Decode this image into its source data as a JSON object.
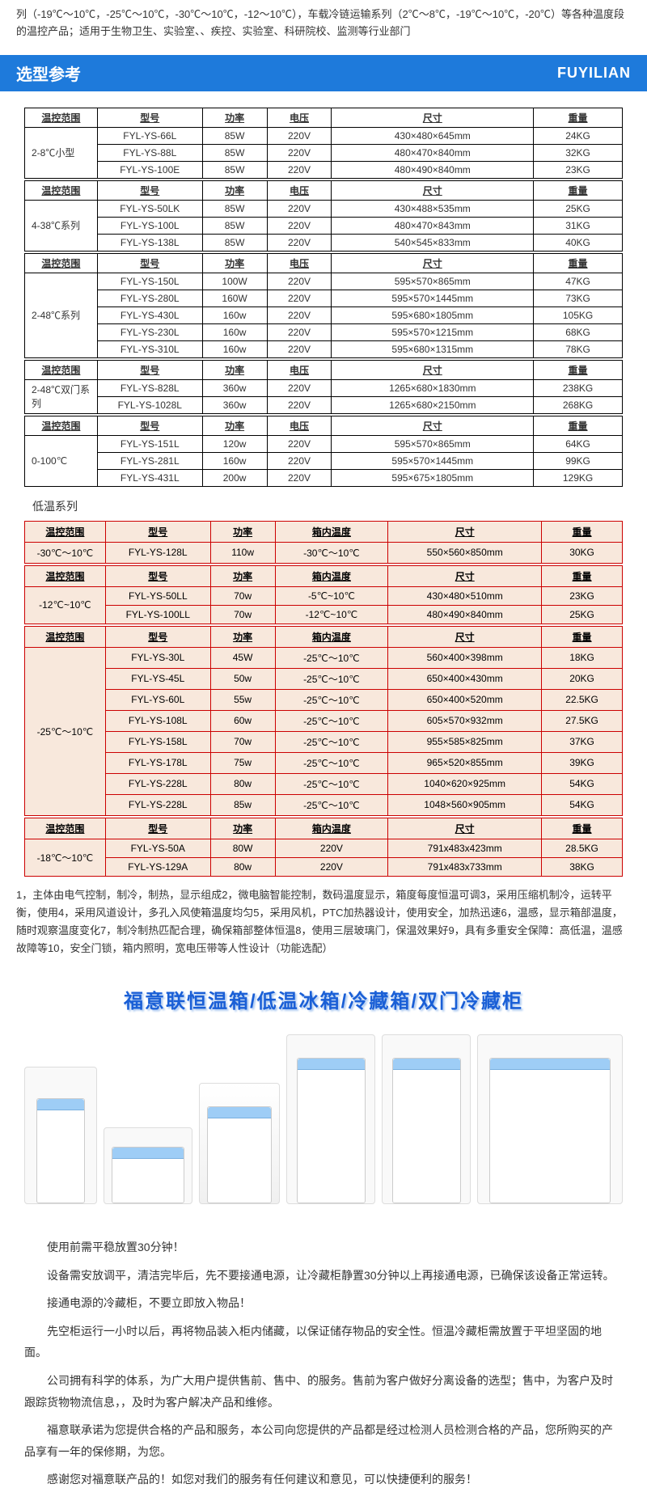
{
  "intro": "列（-19℃～10℃，-25℃～10℃，-30℃～10℃，-12～10℃），车载冷链运输系列（2℃～8℃，-19℃～10℃，-20℃）等各种温度段的温控产品；适用于生物卫生、实验室、、疾控、实验室、科研院校、监测等行业部门",
  "banner": {
    "title": "选型参考",
    "brand": "FUYILIAN"
  },
  "headers1": [
    "温控范围",
    "型号",
    "功率",
    "电压",
    "尺寸",
    "重量"
  ],
  "groups": [
    {
      "range": "2-8℃小型",
      "rows": [
        [
          "FYL-YS-66L",
          "85W",
          "220V",
          "430×480×645mm",
          "24KG"
        ],
        [
          "FYL-YS-88L",
          "85W",
          "220V",
          "480×470×840mm",
          "32KG"
        ],
        [
          "FYL-YS-100E",
          "85W",
          "220V",
          "480×490×840mm",
          "23KG"
        ]
      ]
    },
    {
      "range": "4-38℃系列",
      "rows": [
        [
          "FYL-YS-50LK",
          "85W",
          "220V",
          "430×488×535mm",
          "25KG"
        ],
        [
          "FYL-YS-100L",
          "85W",
          "220V",
          "480×470×843mm",
          "31KG"
        ],
        [
          "FYL-YS-138L",
          "85W",
          "220V",
          "540×545×833mm",
          "40KG"
        ]
      ]
    },
    {
      "range": "2-48℃系列",
      "rows": [
        [
          "FYL-YS-150L",
          "100W",
          "220V",
          "595×570×865mm",
          "47KG"
        ],
        [
          "FYL-YS-280L",
          "160W",
          "220V",
          "595×570×1445mm",
          "73KG"
        ],
        [
          "FYL-YS-430L",
          "160w",
          "220V",
          "595×680×1805mm",
          "105KG"
        ],
        [
          "FYL-YS-230L",
          "160w",
          "220V",
          "595×570×1215mm",
          "68KG"
        ],
        [
          "FYL-YS-310L",
          "160w",
          "220V",
          "595×680×1315mm",
          "78KG"
        ]
      ]
    },
    {
      "range": "2-48℃双门系列",
      "rows": [
        [
          "FYL-YS-828L",
          "360w",
          "220V",
          "1265×680×1830mm",
          "238KG"
        ],
        [
          "FYL-YS-1028L",
          "360w",
          "220V",
          "1265×680×2150mm",
          "268KG"
        ]
      ]
    },
    {
      "range": "0-100℃",
      "rows": [
        [
          "FYL-YS-151L",
          "120w",
          "220V",
          "595×570×865mm",
          "64KG"
        ],
        [
          "FYL-YS-281L",
          "160w",
          "220V",
          "595×570×1445mm",
          "99KG"
        ],
        [
          "FYL-YS-431L",
          "200w",
          "220V",
          "595×675×1805mm",
          "129KG"
        ]
      ]
    }
  ],
  "subhead": "低温系列",
  "headers2": [
    "温控范围",
    "型号",
    "功率",
    "箱内温度",
    "尺寸",
    "重量"
  ],
  "lowgroups": [
    {
      "range": "-30℃～10℃",
      "rows": [
        [
          "FYL-YS-128L",
          "110w",
          "-30℃～10℃",
          "550×560×850mm",
          "30KG"
        ]
      ]
    },
    {
      "range": "-12℃~10℃",
      "rows": [
        [
          "FYL-YS-50LL",
          "70w",
          "-5℃~10℃",
          "430×480×510mm",
          "23KG"
        ],
        [
          "FYL-YS-100LL",
          "70w",
          "-12℃~10℃",
          "480×490×840mm",
          "25KG"
        ]
      ]
    },
    {
      "range": "-25℃～10℃",
      "rows": [
        [
          "FYL-YS-30L",
          "45W",
          "-25℃～10℃",
          "560×400×398mm",
          "18KG"
        ],
        [
          "FYL-YS-45L",
          "50w",
          "-25℃～10℃",
          "650×400×430mm",
          "20KG"
        ],
        [
          "FYL-YS-60L",
          "55w",
          "-25℃～10℃",
          "650×400×520mm",
          "22.5KG"
        ],
        [
          "FYL-YS-108L",
          "60w",
          "-25℃～10℃",
          "605×570×932mm",
          "27.5KG"
        ],
        [
          "FYL-YS-158L",
          "70w",
          "-25℃～10℃",
          "955×585×825mm",
          "37KG"
        ],
        [
          "FYL-YS-178L",
          "75w",
          "-25℃～10℃",
          "965×520×855mm",
          "39KG"
        ],
        [
          "FYL-YS-228L",
          "80w",
          "-25℃～10℃",
          "1040×620×925mm",
          "54KG"
        ],
        [
          "FYL-YS-228L",
          "85w",
          "-25℃～10℃",
          "1048×560×905mm",
          "54KG"
        ]
      ]
    },
    {
      "range": "-18℃～10℃",
      "rows": [
        [
          "FYL-YS-50A",
          "80W",
          "220V",
          "791x483x423mm",
          "28.5KG"
        ],
        [
          "FYL-YS-129A",
          "80w",
          "220V",
          "791x483x733mm",
          "38KG"
        ]
      ]
    }
  ],
  "desc": "1，主体由电气控制，制冷，制热，显示组成2，微电脑智能控制，数码温度显示，箱度每度恒温可调3，采用压缩机制冷，运转平衡，使用4，采用风道设计，多孔入风使箱温度均匀5，采用风机，PTC加热器设计，使用安全，加热迅速6，温感，显示箱部温度，随时观察温度变化7，制冷制热匹配合理，确保箱部整体恒温8，使用三层玻璃门，保温效果好9，具有多重安全保障：高低温，温感故障等10，安全门锁，箱内照明，宽电压带等人性设计（功能选配）",
  "heading_blue": "福意联恒温箱/低温冰箱/冷藏箱/双门冷藏柜",
  "usage": [
    "使用前需平稳放置30分钟！",
    "设备需安放调平，清洁完毕后，先不要接通电源，让冷藏柜静置30分钟以上再接通电源，已确保该设备正常运转。",
    "接通电源的冷藏柜，不要立即放入物品！",
    "先空柜运行一小时以后，再将物品装入柜内储藏，以保证储存物品的安全性。恒温冷藏柜需放置于平坦坚固的地面。",
    "公司拥有科学的体系，为广大用户提供售前、售中、的服务。售前为客户做好分离设备的选型；售中，为客户及时跟踪货物物流信息，，及时为客户解决产品和维修。",
    "福意联承诺为您提供合格的产品和服务，本公司向您提供的产品都是经过检测人员检测合格的产品，您所购买的产品享有一年的保修期，为您。",
    "感谢您对福意联产品的！如您对我们的服务有任何建议和意见，可以快捷便利的服务！"
  ]
}
